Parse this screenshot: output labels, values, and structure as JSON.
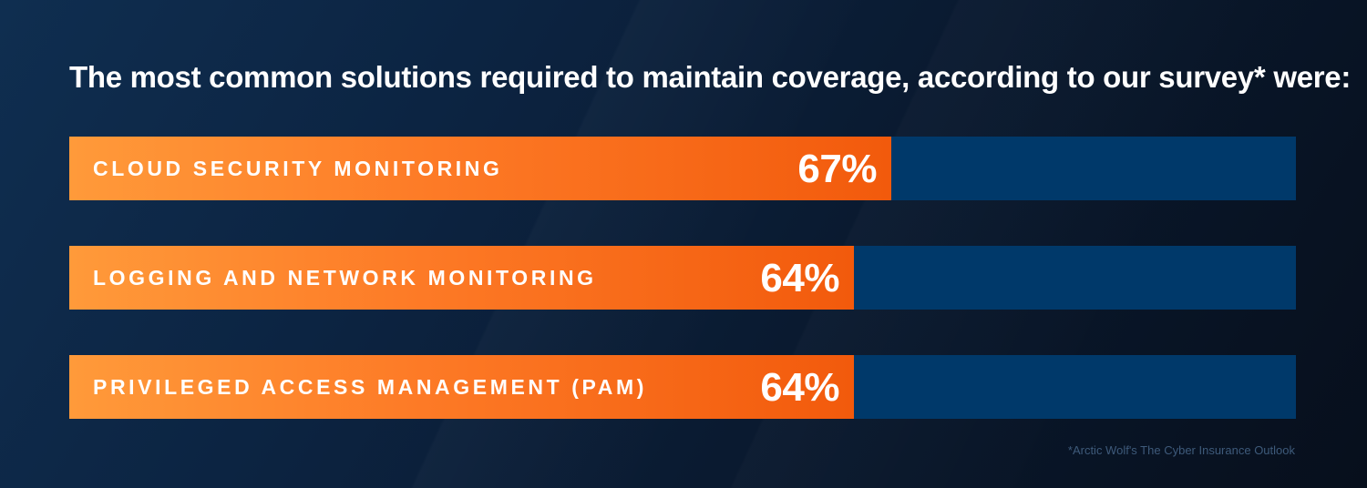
{
  "title": "The most common solutions required to maintain coverage, according to our survey* were:",
  "chart_data": {
    "type": "bar",
    "orientation": "horizontal",
    "categories": [
      "CLOUD SECURITY MONITORING",
      "LOGGING AND NETWORK MONITORING",
      "PRIVILEGED ACCESS MANAGEMENT (PAM)"
    ],
    "values": [
      67,
      64,
      64
    ],
    "value_labels": [
      "67%",
      "64%",
      "64%"
    ],
    "xlim": [
      0,
      100
    ],
    "grid": false
  },
  "colors": {
    "bar_fill_start": "#ff9a3a",
    "bar_fill_end": "#f25a0c",
    "track": "#00396a",
    "background": "#0c2442",
    "text": "#ffffff"
  },
  "footnote": "*Arctic Wolf's The Cyber Insurance Outlook"
}
